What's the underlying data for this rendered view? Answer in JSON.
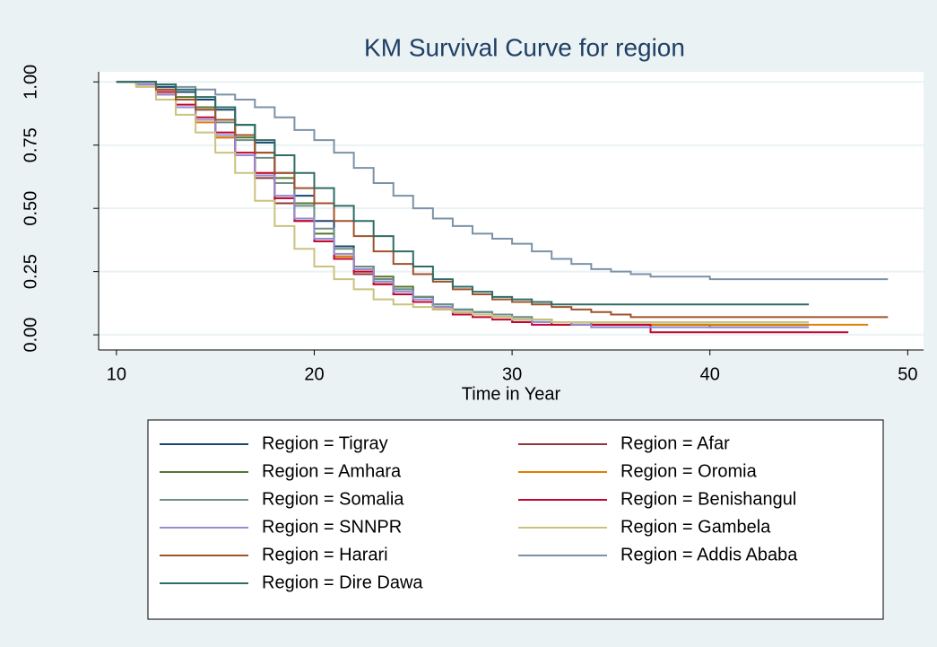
{
  "chart_data": {
    "type": "step-line",
    "title": "KM Survival Curve for region",
    "x_label": "Time in Year",
    "x": [
      10,
      11,
      12,
      13,
      14,
      15,
      16,
      17,
      18,
      19,
      20,
      21,
      22,
      23,
      24,
      25,
      26,
      27,
      28,
      29,
      30,
      31,
      32,
      33,
      34,
      35,
      36,
      37,
      38,
      39,
      40,
      41,
      42,
      43,
      44,
      45,
      46,
      47,
      48,
      49
    ],
    "xlim": [
      9.1,
      50.8
    ],
    "xticks": [
      10,
      20,
      30,
      40,
      50
    ],
    "ylim": [
      -0.06,
      1.04
    ],
    "yticks": [
      {
        "value": 0,
        "label": "0.00"
      },
      {
        "value": 0.25,
        "label": "0.25"
      },
      {
        "value": 0.5,
        "label": "0.50"
      },
      {
        "value": 0.75,
        "label": "0.75"
      },
      {
        "value": 1,
        "label": "1.00"
      }
    ],
    "grid": true,
    "series": [
      {
        "name": "Region = Tigray",
        "color": "#1a476f",
        "values": [
          1,
          1,
          0.98,
          0.96,
          0.93,
          0.89,
          0.83,
          0.76,
          0.64,
          0.55,
          0.45,
          0.35,
          0.27,
          0.22,
          0.18,
          0.15,
          0.12,
          0.1,
          0.09,
          0.08,
          0.07,
          0.06,
          0.05,
          0.05,
          0.04,
          0.04,
          0.04,
          0.04,
          0.04,
          0.04,
          0.04,
          0.04,
          0.04,
          0.04,
          0.04,
          0.04,
          null,
          null,
          null,
          null
        ]
      },
      {
        "name": "Region = Afar",
        "color": "#90353b",
        "values": [
          1,
          0.99,
          0.95,
          0.9,
          0.85,
          0.78,
          0.71,
          0.62,
          0.52,
          0.45,
          0.37,
          0.3,
          0.24,
          0.2,
          0.16,
          0.13,
          0.11,
          0.09,
          0.08,
          0.07,
          0.06,
          0.05,
          0.04,
          0.04,
          0.04,
          0.04,
          0.04,
          0.04,
          0.04,
          0.04,
          0.03,
          0.03,
          0.03,
          0.03,
          0.03,
          0.03,
          null,
          null,
          null,
          null
        ]
      },
      {
        "name": "Region = Amhara",
        "color": "#55752f",
        "values": [
          1,
          1,
          0.97,
          0.94,
          0.9,
          0.85,
          0.78,
          0.72,
          0.62,
          0.52,
          0.4,
          0.31,
          0.26,
          0.23,
          0.19,
          0.15,
          0.11,
          0.09,
          0.08,
          0.07,
          0.06,
          0.05,
          0.05,
          0.04,
          0.04,
          0.04,
          0.04,
          0.04,
          0.04,
          0.04,
          0.04,
          0.04,
          0.04,
          0.04,
          0.04,
          0.04,
          null,
          null,
          null,
          null
        ]
      },
      {
        "name": "Region = Oromia",
        "color": "#e37e00",
        "values": [
          1,
          0.99,
          0.95,
          0.9,
          0.84,
          0.78,
          0.71,
          0.64,
          0.54,
          0.46,
          0.38,
          0.31,
          0.25,
          0.2,
          0.16,
          0.13,
          0.11,
          0.09,
          0.08,
          0.07,
          0.06,
          0.05,
          0.05,
          0.05,
          0.04,
          0.04,
          0.04,
          0.04,
          0.04,
          0.04,
          0.04,
          0.04,
          0.04,
          0.04,
          0.04,
          0.04,
          0.04,
          0.04,
          0.04,
          null
        ]
      },
      {
        "name": "Region = Somalia",
        "color": "#6e8e84",
        "values": [
          1,
          1,
          0.96,
          0.93,
          0.89,
          0.84,
          0.77,
          0.7,
          0.6,
          0.51,
          0.42,
          0.34,
          0.27,
          0.22,
          0.18,
          0.15,
          0.12,
          0.1,
          0.09,
          0.08,
          0.07,
          0.06,
          0.05,
          0.05,
          0.03,
          0.03,
          0.03,
          0.03,
          0.03,
          0.03,
          0.03,
          0.03,
          0.03,
          0.03,
          0.03,
          0.03,
          null,
          null,
          null,
          null
        ]
      },
      {
        "name": "Region = Benishangul",
        "color": "#c10534",
        "values": [
          1,
          0.99,
          0.96,
          0.91,
          0.86,
          0.8,
          0.72,
          0.64,
          0.54,
          0.45,
          0.37,
          0.3,
          0.25,
          0.2,
          0.16,
          0.13,
          0.1,
          0.08,
          0.07,
          0.06,
          0.05,
          0.04,
          0.04,
          0.04,
          0.04,
          0.04,
          0.04,
          0.01,
          0.01,
          0.01,
          0.01,
          0.01,
          0.01,
          0.01,
          0.01,
          0.01,
          0.01,
          0.01,
          null,
          null
        ]
      },
      {
        "name": "Region = SNNPR",
        "color": "#938dd2",
        "values": [
          1,
          0.99,
          0.95,
          0.9,
          0.85,
          0.79,
          0.71,
          0.63,
          0.55,
          0.46,
          0.38,
          0.32,
          0.26,
          0.21,
          0.17,
          0.14,
          0.11,
          0.09,
          0.08,
          0.07,
          0.06,
          0.05,
          0.05,
          0.04,
          0.03,
          0.03,
          0.03,
          0.03,
          0.03,
          0.03,
          0.03,
          0.03,
          0.03,
          0.03,
          0.03,
          0.03,
          null,
          null,
          null,
          null
        ]
      },
      {
        "name": "Region = Gambela",
        "color": "#cac27e",
        "values": [
          1,
          0.98,
          0.93,
          0.87,
          0.8,
          0.72,
          0.64,
          0.53,
          0.43,
          0.34,
          0.27,
          0.22,
          0.18,
          0.14,
          0.12,
          0.11,
          0.1,
          0.09,
          0.08,
          0.07,
          0.06,
          0.06,
          0.05,
          0.05,
          0.05,
          0.05,
          0.05,
          0.05,
          0.05,
          0.05,
          0.05,
          0.05,
          0.05,
          0.05,
          0.05,
          0.05,
          null,
          null,
          null,
          null
        ]
      },
      {
        "name": "Region = Harari",
        "color": "#a0522d",
        "values": [
          1,
          1,
          0.97,
          0.93,
          0.89,
          0.85,
          0.79,
          0.72,
          0.64,
          0.58,
          0.52,
          0.45,
          0.39,
          0.33,
          0.28,
          0.24,
          0.21,
          0.18,
          0.16,
          0.14,
          0.13,
          0.12,
          0.11,
          0.1,
          0.09,
          0.08,
          0.07,
          0.07,
          0.07,
          0.07,
          0.07,
          0.07,
          0.07,
          0.07,
          0.07,
          0.07,
          0.07,
          0.07,
          0.07,
          0.07
        ]
      },
      {
        "name": "Region = Addis Ababa",
        "color": "#7b92a8",
        "values": [
          1,
          1,
          0.99,
          0.98,
          0.97,
          0.95,
          0.93,
          0.9,
          0.86,
          0.81,
          0.77,
          0.72,
          0.66,
          0.6,
          0.55,
          0.5,
          0.46,
          0.43,
          0.4,
          0.38,
          0.36,
          0.33,
          0.3,
          0.28,
          0.26,
          0.25,
          0.24,
          0.23,
          0.23,
          0.23,
          0.22,
          0.22,
          0.22,
          0.22,
          0.22,
          0.22,
          0.22,
          0.22,
          0.22,
          0.22
        ]
      },
      {
        "name": "Region = Dire Dawa",
        "color": "#2d6d66",
        "values": [
          1,
          1,
          0.99,
          0.97,
          0.94,
          0.9,
          0.83,
          0.77,
          0.71,
          0.64,
          0.58,
          0.51,
          0.45,
          0.39,
          0.33,
          0.27,
          0.22,
          0.19,
          0.17,
          0.15,
          0.14,
          0.13,
          0.12,
          0.12,
          0.12,
          0.12,
          0.12,
          0.12,
          0.12,
          0.12,
          0.12,
          0.12,
          0.12,
          0.12,
          0.12,
          0.12,
          null,
          null,
          null,
          null
        ]
      }
    ]
  }
}
